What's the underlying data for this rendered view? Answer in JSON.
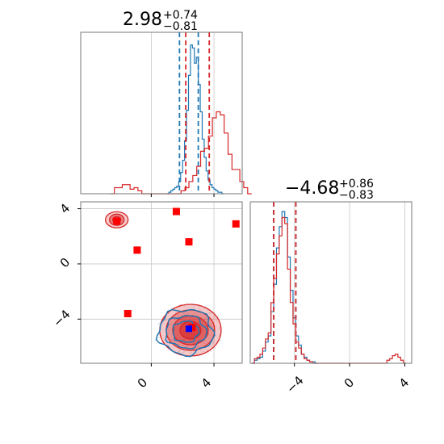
{
  "chart_data": [
    {
      "type": "histogram",
      "panel": "top-left",
      "title": {
        "main": "2.98",
        "sup": "+0.74",
        "sub": "−0.81"
      },
      "xlim": [
        -4.5,
        5.8
      ],
      "grid": true,
      "series": [
        {
          "color": "#1f77b4",
          "bins_x_start": 1.0,
          "bin_width": 0.125,
          "counts": [
            0,
            1,
            2,
            3,
            4,
            5,
            8,
            14,
            22,
            35,
            55,
            78,
            98,
            96,
            86,
            90,
            72,
            54,
            36,
            24,
            15,
            9,
            6,
            4,
            3,
            2,
            1,
            1,
            0
          ],
          "quantile_lines": [
            1.8,
            3.0
          ]
        },
        {
          "color": "#d62728",
          "bins_x_start": -2.6,
          "bin_width": 0.25,
          "counts": [
            0,
            4,
            4,
            6,
            6,
            3,
            4,
            2,
            0,
            0,
            0,
            0,
            0,
            0,
            0,
            0,
            0,
            0,
            2,
            4,
            8,
            12,
            18,
            28,
            30,
            38,
            50,
            54,
            52,
            40,
            26,
            16,
            16,
            8,
            4,
            0
          ],
          "quantile_lines": [
            2.2,
            3.7
          ]
        }
      ]
    },
    {
      "type": "contour_scatter",
      "panel": "bottom-left",
      "xlim": [
        -4.5,
        5.8
      ],
      "ylim": [
        -7.2,
        4.5
      ],
      "grid": true,
      "markers_red": [
        [
          -2.2,
          3.1
        ],
        [
          -0.9,
          1.0
        ],
        [
          1.6,
          3.8
        ],
        [
          2.4,
          1.6
        ],
        [
          5.4,
          2.9
        ],
        [
          -1.5,
          -3.6
        ],
        [
          2.6,
          -4.6
        ]
      ],
      "marker_blue": [
        2.4,
        -4.7
      ],
      "blob_main": {
        "cx": 2.5,
        "cy": -4.8,
        "color_red": "#d62728",
        "color_blue": "#1f77b4"
      },
      "blob_small": {
        "cx": -2.2,
        "cy": 3.2,
        "color": "#d62728"
      }
    },
    {
      "type": "histogram",
      "panel": "bottom-right",
      "title": {
        "main": "−4.68",
        "sup": "+0.86",
        "sub": "−0.83"
      },
      "xlim": [
        -7.2,
        4.5
      ],
      "grid": true,
      "series": [
        {
          "color": "#1f77b4",
          "bins_x_start": -7.1,
          "bin_width": 0.2,
          "counts": [
            0,
            2,
            3,
            4,
            8,
            14,
            18,
            34,
            52,
            76,
            90,
            100,
            96,
            70,
            48,
            30,
            18,
            12,
            6,
            4,
            2,
            1,
            1,
            0
          ],
          "quantile_lines": [
            -5.5,
            -3.9
          ]
        },
        {
          "color": "#d62728",
          "bins_x_start": -7.1,
          "bin_width": 0.2,
          "counts": [
            0,
            3,
            4,
            6,
            10,
            16,
            20,
            40,
            56,
            72,
            84,
            96,
            92,
            62,
            40,
            26,
            14,
            10,
            6,
            3,
            2,
            1,
            0,
            0,
            0,
            0,
            0,
            0,
            0,
            0,
            0,
            0,
            0,
            0,
            0,
            0,
            0,
            0,
            0,
            0,
            0,
            0,
            0,
            0,
            0,
            0,
            0,
            0,
            0,
            2,
            3,
            5,
            6,
            4,
            2,
            0
          ],
          "quantile_lines": [
            -5.5,
            -3.9
          ]
        }
      ]
    }
  ],
  "ticks": {
    "bottom_left_x": [
      "0",
      "4"
    ],
    "bottom_left_y": [
      "4",
      "0",
      "−4"
    ],
    "bottom_right_x": [
      "−4",
      "0",
      "4"
    ]
  }
}
